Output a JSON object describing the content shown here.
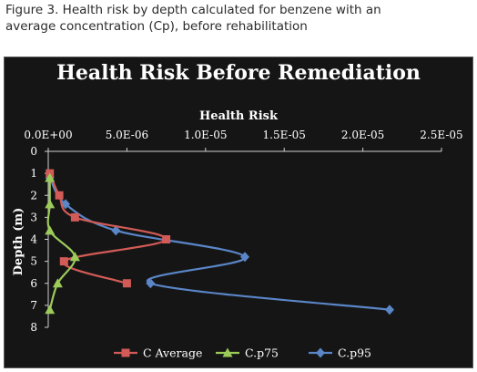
{
  "figure_caption": "Figure 3. Health risk by depth calculated for benzene with an average concentration (Cp), before rehabilitation",
  "chart_data": {
    "type": "scatter",
    "title": "Health Risk Before Remediation",
    "xlabel": "Health Risk",
    "ylabel": "Depth (m)",
    "xlim": [
      0,
      2.5e-05
    ],
    "ylim": [
      0,
      8
    ],
    "y_inverted": true,
    "x_ticks": [
      "0.0E+00",
      "5.0E-06",
      "1.0E-05",
      "1.5E-05",
      "2.0E-05",
      "2.5E-05"
    ],
    "y_ticks": [
      "0",
      "1",
      "2",
      "3",
      "4",
      "5",
      "6",
      "7",
      "8"
    ],
    "x_axis_position": "top",
    "legend_position": "bottom",
    "grid": false,
    "colors": {
      "background": "#151515",
      "plot_area": "#151515",
      "text": "#ffffff",
      "axis": "#d0d0d0"
    },
    "series": [
      {
        "name": "C Average",
        "color": "#d25b57",
        "marker": "square",
        "points": [
          {
            "x": 1e-07,
            "y": 1.0
          },
          {
            "x": 7e-07,
            "y": 2.0
          },
          {
            "x": 1.7e-06,
            "y": 3.0
          },
          {
            "x": 7.5e-06,
            "y": 4.0
          },
          {
            "x": 1e-06,
            "y": 5.0
          },
          {
            "x": 5e-06,
            "y": 6.0
          }
        ]
      },
      {
        "name": "C.p75",
        "color": "#9ccb5a",
        "marker": "triangle",
        "points": [
          {
            "x": 1e-07,
            "y": 1.2
          },
          {
            "x": 1e-07,
            "y": 2.4
          },
          {
            "x": 1e-07,
            "y": 3.6
          },
          {
            "x": 1.7e-06,
            "y": 4.8
          },
          {
            "x": 6e-07,
            "y": 6.0
          },
          {
            "x": 1e-07,
            "y": 7.2
          }
        ]
      },
      {
        "name": "C.p95",
        "color": "#5a86c8",
        "marker": "diamond",
        "points": [
          {
            "x": 1e-07,
            "y": 1.2
          },
          {
            "x": 1.1e-06,
            "y": 2.4
          },
          {
            "x": 4.3e-06,
            "y": 3.6
          },
          {
            "x": 1.25e-05,
            "y": 4.8
          },
          {
            "x": 6.5e-06,
            "y": 6.0
          },
          {
            "x": 2.17e-05,
            "y": 7.2
          }
        ]
      }
    ]
  }
}
